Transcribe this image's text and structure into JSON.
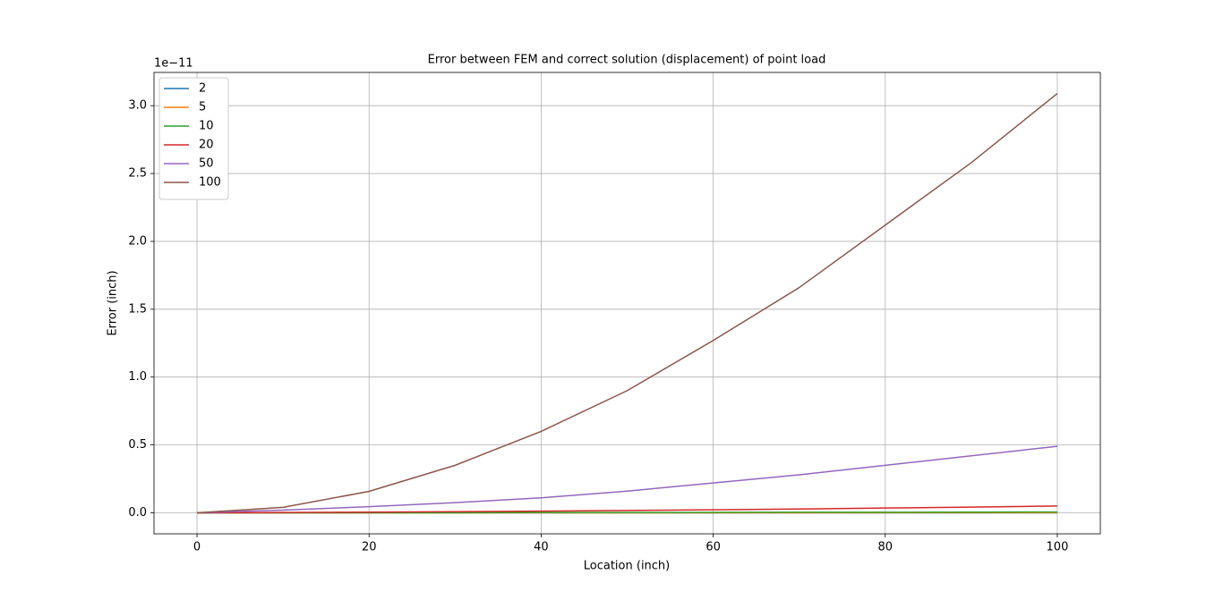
{
  "chart_data": {
    "type": "line",
    "title": "Error between FEM and correct solution (displacement) of point load",
    "x_label": "Location (inch)",
    "y_label": "Error (inch)",
    "y_offset_label": "1e−11",
    "x": [
      0,
      10,
      20,
      30,
      40,
      50,
      60,
      70,
      80,
      90,
      100
    ],
    "series": [
      {
        "name": "2",
        "color": "#1f77b4",
        "values": [
          0,
          0,
          0,
          0,
          0,
          0,
          0,
          0,
          0,
          0,
          0
        ]
      },
      {
        "name": "5",
        "color": "#ff7f0e",
        "values": [
          0,
          0,
          0,
          0,
          0,
          0,
          0,
          0,
          0.001,
          0.001,
          0.001
        ]
      },
      {
        "name": "10",
        "color": "#2ca02c",
        "values": [
          0,
          0,
          0.001,
          0.001,
          0.002,
          0.002,
          0.003,
          0.004,
          0.004,
          0.005,
          0.006
        ]
      },
      {
        "name": "20",
        "color": "#d62728",
        "values": [
          0,
          0.002,
          0.005,
          0.008,
          0.012,
          0.017,
          0.022,
          0.028,
          0.035,
          0.042,
          0.05
        ]
      },
      {
        "name": "50",
        "color": "#9467bd",
        "values": [
          0,
          0.02,
          0.045,
          0.075,
          0.11,
          0.16,
          0.22,
          0.28,
          0.35,
          0.42,
          0.49
        ]
      },
      {
        "name": "100",
        "color": "#8c564b",
        "values": [
          0,
          0.04,
          0.158,
          0.35,
          0.6,
          0.9,
          1.27,
          1.66,
          2.12,
          2.58,
          3.09
        ]
      }
    ],
    "xlim": [
      -5,
      105
    ],
    "ylim": [
      -0.155,
      3.245
    ],
    "xticks": [
      0,
      20,
      40,
      60,
      80,
      100
    ],
    "yticks": [
      {
        "value": 0,
        "label": "0.0"
      },
      {
        "value": 0.5,
        "label": "0.5"
      },
      {
        "value": 1,
        "label": "1.0"
      },
      {
        "value": 1.5,
        "label": "1.5"
      },
      {
        "value": 2,
        "label": "2.0"
      },
      {
        "value": 2.5,
        "label": "2.5"
      },
      {
        "value": 3,
        "label": "3.0"
      }
    ],
    "grid": true,
    "legend": "upper-left"
  }
}
